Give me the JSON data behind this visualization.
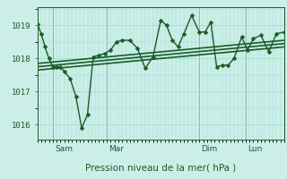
{
  "xlabel": "Pression niveau de la mer( hPa )",
  "bg_color": "#cceee8",
  "grid_color": "#99ddcc",
  "line_color": "#1a5c28",
  "text_color": "#1a5c28",
  "ylim": [
    1015.55,
    1019.55
  ],
  "xlim": [
    0,
    128
  ],
  "yticks": [
    1016,
    1017,
    1018,
    1019
  ],
  "x_tick_positions": [
    8,
    36,
    84,
    108
  ],
  "x_tick_labels": [
    "Sam",
    "Mar",
    "Dim",
    "Lun"
  ],
  "series1_x": [
    0,
    2,
    4,
    6,
    8,
    10,
    12,
    14,
    17,
    20,
    23,
    26,
    29,
    32,
    35,
    38,
    41,
    44,
    48,
    52,
    56,
    60,
    64,
    67,
    70,
    73,
    76,
    80,
    84,
    87,
    90,
    93,
    96,
    99,
    102,
    106,
    109,
    112,
    116,
    120,
    124,
    128
  ],
  "series1_y": [
    1019.05,
    1018.75,
    1018.35,
    1018.0,
    1017.75,
    1017.75,
    1017.75,
    1017.6,
    1017.4,
    1016.85,
    1015.9,
    1016.3,
    1018.05,
    1018.1,
    1018.15,
    1018.25,
    1018.5,
    1018.55,
    1018.55,
    1018.3,
    1017.7,
    1018.05,
    1019.15,
    1019.0,
    1018.55,
    1018.35,
    1018.75,
    1019.3,
    1018.8,
    1018.8,
    1019.1,
    1017.75,
    1017.8,
    1017.8,
    1018.0,
    1018.65,
    1018.25,
    1018.6,
    1018.7,
    1018.2,
    1018.75,
    1018.8
  ],
  "trend_lines": [
    {
      "x": [
        0,
        128
      ],
      "y": [
        1017.65,
        1018.35
      ]
    },
    {
      "x": [
        0,
        128
      ],
      "y": [
        1017.75,
        1018.45
      ]
    },
    {
      "x": [
        0,
        128
      ],
      "y": [
        1017.85,
        1018.55
      ]
    }
  ],
  "marker_size": 2.5,
  "linewidth": 1.0,
  "trend_linewidth": 1.2
}
